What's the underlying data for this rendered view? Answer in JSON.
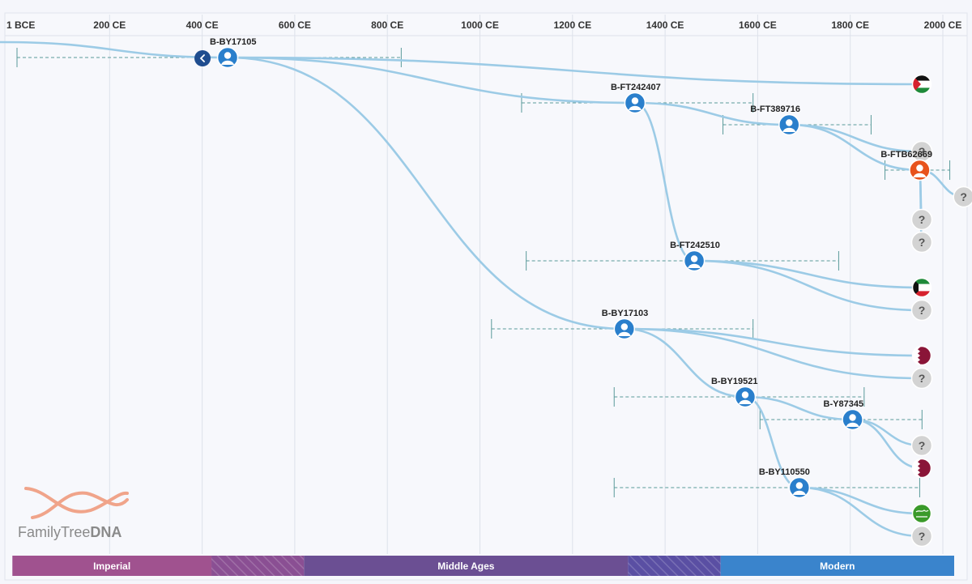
{
  "axis": {
    "ticks": [
      {
        "label": "1 BCE",
        "year": 0
      },
      {
        "label": "200 CE",
        "year": 200
      },
      {
        "label": "400 CE",
        "year": 400
      },
      {
        "label": "600 CE",
        "year": 600
      },
      {
        "label": "800 CE",
        "year": 800
      },
      {
        "label": "1000 CE",
        "year": 1000
      },
      {
        "label": "1200 CE",
        "year": 1200
      },
      {
        "label": "1400 CE",
        "year": 1400
      },
      {
        "label": "1600 CE",
        "year": 1600
      },
      {
        "label": "1800 CE",
        "year": 1800
      },
      {
        "label": "2000 CE",
        "year": 2000
      }
    ]
  },
  "eras": [
    {
      "label": "Imperial",
      "start": -10,
      "end": 420,
      "color": "#a0528f",
      "hatched": false
    },
    {
      "label": "",
      "start": 420,
      "end": 620,
      "color": "#8a4f93",
      "hatched": true
    },
    {
      "label": "Middle Ages",
      "start": 620,
      "end": 1320,
      "color": "#6b4f93",
      "hatched": false
    },
    {
      "label": "",
      "start": 1320,
      "end": 1520,
      "color": "#5a4fa3",
      "hatched": true
    },
    {
      "label": "Modern",
      "start": 1520,
      "end": 2030,
      "color": "#3a84cc",
      "hatched": false
    }
  ],
  "nodes": [
    {
      "id": "BY17105",
      "label": "B-BY17105",
      "year": 455,
      "row": 71,
      "ci": [
        0,
        830
      ],
      "labelDy": -16,
      "labelDx": -22,
      "color": "#2a7fcc",
      "back": true
    },
    {
      "id": "FT242407",
      "label": "B-FT242407",
      "year": 1335,
      "row": 127,
      "ci": [
        1090,
        1590
      ],
      "labelDy": -16,
      "labelDx": -30,
      "color": "#2a7fcc"
    },
    {
      "id": "FT389716",
      "label": "B-FT389716",
      "year": 1668,
      "row": 154,
      "ci": [
        1525,
        1845
      ],
      "labelDy": -16,
      "labelDx": -48,
      "color": "#2a7fcc"
    },
    {
      "id": "FTB62669",
      "label": "B-FTB62669",
      "year": 1950,
      "row": 210,
      "ci": [
        1875,
        2015
      ],
      "labelDy": -16,
      "labelDx": -48,
      "color": "#e8531c"
    },
    {
      "id": "FT242510",
      "label": "B-FT242510",
      "year": 1463,
      "row": 322,
      "ci": [
        1100,
        1775
      ],
      "labelDy": -16,
      "labelDx": -30,
      "color": "#2a7fcc"
    },
    {
      "id": "BY17103",
      "label": "B-BY17103",
      "year": 1312,
      "row": 406,
      "ci": [
        1025,
        1590
      ],
      "labelDy": -16,
      "labelDx": -28,
      "color": "#2a7fcc"
    },
    {
      "id": "BY19521",
      "label": "B-BY19521",
      "year": 1573,
      "row": 490,
      "ci": [
        1290,
        1830
      ],
      "labelDy": -16,
      "labelDx": -42,
      "color": "#2a7fcc"
    },
    {
      "id": "Y87345",
      "label": "B-Y87345",
      "year": 1805,
      "row": 518,
      "ci": [
        1605,
        1955
      ],
      "labelDy": -16,
      "labelDx": -36,
      "color": "#2a7fcc"
    },
    {
      "id": "BY110550",
      "label": "B-BY110550",
      "year": 1690,
      "row": 602,
      "ci": [
        1290,
        1950
      ],
      "labelDy": -16,
      "labelDx": -50,
      "color": "#2a7fcc"
    }
  ],
  "leaves": [
    {
      "id": "L1",
      "kind": "flag-palestine",
      "row": 104
    },
    {
      "id": "L2",
      "kind": "unknown",
      "row": 187
    },
    {
      "id": "L3",
      "kind": "unknown",
      "row": 243,
      "year": 2045
    },
    {
      "id": "L4",
      "kind": "unknown",
      "row": 271
    },
    {
      "id": "L5",
      "kind": "unknown",
      "row": 299
    },
    {
      "id": "L6",
      "kind": "flag-kuwait",
      "row": 355
    },
    {
      "id": "L7",
      "kind": "unknown",
      "row": 383
    },
    {
      "id": "L8",
      "kind": "flag-qatar",
      "row": 439
    },
    {
      "id": "L9",
      "kind": "unknown",
      "row": 467
    },
    {
      "id": "L10",
      "kind": "unknown",
      "row": 550
    },
    {
      "id": "L11",
      "kind": "flag-qatar",
      "row": 578
    },
    {
      "id": "L12",
      "kind": "flag-saudi",
      "row": 634
    },
    {
      "id": "L13",
      "kind": "unknown",
      "row": 662
    }
  ],
  "edges": [
    {
      "from": "ROOT",
      "to": "BY17105"
    },
    {
      "from": "BY17105",
      "to": "L1"
    },
    {
      "from": "BY17105",
      "to": "FT242407"
    },
    {
      "from": "BY17105",
      "to": "BY17103"
    },
    {
      "from": "FT242407",
      "to": "FT389716"
    },
    {
      "from": "FT242407",
      "to": "FT242510"
    },
    {
      "from": "FT389716",
      "to": "L2"
    },
    {
      "from": "FT389716",
      "to": "FTB62669"
    },
    {
      "from": "FTB62669",
      "to": "L3"
    },
    {
      "from": "FTB62669",
      "to": "L4"
    },
    {
      "from": "FTB62669",
      "to": "L5"
    },
    {
      "from": "FT242510",
      "to": "L6"
    },
    {
      "from": "FT242510",
      "to": "L7"
    },
    {
      "from": "BY17103",
      "to": "L8"
    },
    {
      "from": "BY17103",
      "to": "L9"
    },
    {
      "from": "BY17103",
      "to": "BY19521"
    },
    {
      "from": "BY19521",
      "to": "Y87345"
    },
    {
      "from": "BY19521",
      "to": "BY110550"
    },
    {
      "from": "Y87345",
      "to": "L10"
    },
    {
      "from": "Y87345",
      "to": "L11"
    },
    {
      "from": "BY110550",
      "to": "L12"
    },
    {
      "from": "BY110550",
      "to": "L13"
    }
  ],
  "logo": {
    "text_regular": "FamilyTree",
    "text_bold": "DNA"
  },
  "unknown_symbol": "?",
  "colors": {
    "line": "#9ccbe6",
    "ci": "#5a9a9a",
    "grid": "#dde1ea",
    "node": "#2a7fcc",
    "node_alt": "#e8531c"
  }
}
